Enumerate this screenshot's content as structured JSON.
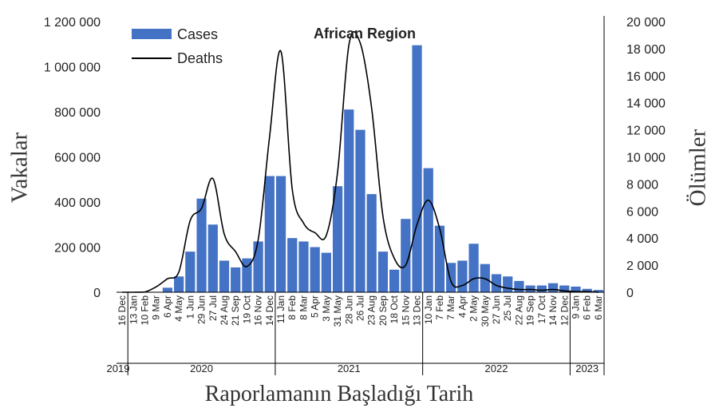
{
  "chart_data": {
    "type": "bar",
    "title": "African Region",
    "xlabel": "Raporlamanın Başladığı Tarih",
    "ylabel": "Vakalar",
    "y2label": "Ölümler",
    "ylim": [
      0,
      1200000
    ],
    "y2lim": [
      0,
      20000
    ],
    "yticks": [
      0,
      200000,
      400000,
      600000,
      800000,
      1000000,
      1200000
    ],
    "ytick_labels": [
      "0",
      "200 000",
      "400 000",
      "600 000",
      "800 000",
      "1 000 000",
      "1 200 000"
    ],
    "y2ticks": [
      0,
      2000,
      4000,
      6000,
      8000,
      10000,
      12000,
      14000,
      16000,
      18000,
      20000
    ],
    "y2tick_labels": [
      "0",
      "2 000",
      "4 000",
      "6 000",
      "8 000",
      "10 000",
      "12 000",
      "14 000",
      "16 000",
      "18 000",
      "20 000"
    ],
    "categories": [
      "16 Dec",
      "13 Jan",
      "10 Feb",
      "9 Mar",
      "6 Apr",
      "4 May",
      "1 Jun",
      "29 Jun",
      "27 Jul",
      "24 Aug",
      "21 Sep",
      "19 Oct",
      "16 Nov",
      "14 Dec",
      "11 Jan",
      "8 Feb",
      "8 Mar",
      "5 Apr",
      "3 May",
      "31 May",
      "28 Jun",
      "26 Jul",
      "23 Aug",
      "20 Sep",
      "18 Oct",
      "15 Nov",
      "13 Dec",
      "10 Jan",
      "7 Feb",
      "7 Mar",
      "4 Apr",
      "2 May",
      "30 May",
      "27 Jun",
      "25 Jul",
      "22 Aug",
      "19 Sep",
      "17 Oct",
      "14 Nov",
      "12 Dec",
      "9 Jan",
      "6 Feb",
      "6 Mar"
    ],
    "year_labels": [
      {
        "label": "2019",
        "start_index": 0
      },
      {
        "label": "2020",
        "start_index": 1
      },
      {
        "label": "2021",
        "start_index": 14
      },
      {
        "label": "2022",
        "start_index": 27
      },
      {
        "label": "2023",
        "start_index": 40
      }
    ],
    "series": [
      {
        "name": "Cases",
        "type": "bar",
        "axis": "left",
        "color": "#4472C4",
        "values": [
          0,
          0,
          0,
          2000,
          20000,
          70000,
          180000,
          415000,
          300000,
          140000,
          110000,
          150000,
          225000,
          515000,
          515000,
          240000,
          225000,
          200000,
          175000,
          470000,
          810000,
          720000,
          435000,
          180000,
          100000,
          325000,
          1095000,
          550000,
          295000,
          130000,
          140000,
          215000,
          125000,
          80000,
          70000,
          50000,
          30000,
          30000,
          40000,
          30000,
          25000,
          15000,
          10000
        ]
      },
      {
        "name": "Deaths",
        "type": "line",
        "axis": "right",
        "color": "#000000",
        "values": [
          0,
          0,
          20,
          400,
          1000,
          1500,
          5300,
          6200,
          8400,
          4300,
          3000,
          1900,
          3900,
          11500,
          17800,
          7600,
          5100,
          4400,
          4200,
          8900,
          18300,
          18400,
          13600,
          5600,
          2500,
          2000,
          5000,
          6800,
          4700,
          800,
          500,
          1000,
          1000,
          500,
          300,
          200,
          200,
          150,
          200,
          100,
          50,
          50,
          0
        ]
      }
    ],
    "legend": "top-left"
  }
}
